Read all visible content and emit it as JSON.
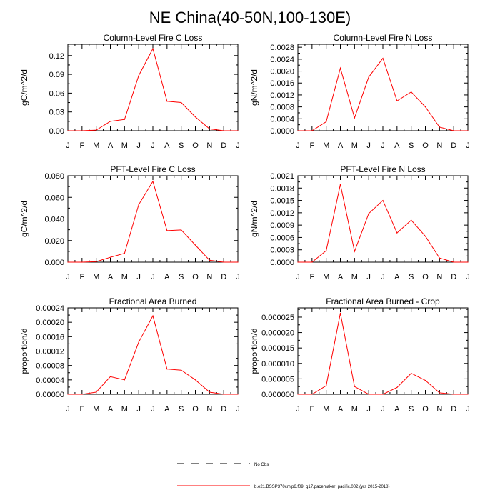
{
  "figure": {
    "title": "NE China(40-50N,100-130E)",
    "legend": {
      "placement": "bottom-center",
      "items": [
        {
          "label": "No Obs",
          "style": "dashed",
          "color": "#000000"
        },
        {
          "label": "b.e21.BSSP370cmip6.f09_g17.pacemaker_pacific.002 (yrs 2015-2018)",
          "style": "solid",
          "color": "#ff0000"
        }
      ]
    }
  },
  "chart_data": [
    {
      "type": "line",
      "title": "Column-Level Fire C Loss",
      "ylabel": "gC/m^2/d",
      "x": [
        "J",
        "F",
        "M",
        "A",
        "M",
        "J",
        "J",
        "A",
        "S",
        "O",
        "N",
        "D",
        "J"
      ],
      "yticks": [
        "0.00",
        "0.03",
        "0.06",
        "0.09",
        "0.12"
      ],
      "ylim": [
        0,
        0.138
      ],
      "series": [
        {
          "color": "#ff0000",
          "values": [
            0.0,
            0.0,
            0.001,
            0.015,
            0.018,
            0.088,
            0.131,
            0.047,
            0.045,
            0.022,
            0.003,
            0.0,
            0.0
          ]
        }
      ]
    },
    {
      "type": "line",
      "title": "Column-Level Fire N Loss",
      "ylabel": "gN/m^2/d",
      "x": [
        "J",
        "F",
        "M",
        "A",
        "M",
        "J",
        "J",
        "A",
        "S",
        "O",
        "N",
        "D",
        "J"
      ],
      "yticks": [
        "0.0000",
        "0.0004",
        "0.0008",
        "0.0012",
        "0.0016",
        "0.0020",
        "0.0024",
        "0.0028"
      ],
      "ylim": [
        0,
        0.0029
      ],
      "series": [
        {
          "color": "#ff0000",
          "values": [
            0.0,
            0.0,
            0.0003,
            0.0021,
            0.00043,
            0.0018,
            0.00243,
            0.001,
            0.0013,
            0.0008,
            0.00012,
            0.0,
            0.0
          ]
        }
      ]
    },
    {
      "type": "line",
      "title": "PFT-Level Fire C Loss",
      "ylabel": "gC/m^2/d",
      "x": [
        "J",
        "F",
        "M",
        "A",
        "M",
        "J",
        "J",
        "A",
        "S",
        "O",
        "N",
        "D",
        "J"
      ],
      "yticks": [
        "0.000",
        "0.020",
        "0.040",
        "0.060",
        "0.080"
      ],
      "ylim": [
        0,
        0.08
      ],
      "series": [
        {
          "color": "#ff0000",
          "values": [
            0.0,
            0.0,
            0.0005,
            0.0045,
            0.0082,
            0.0532,
            0.0748,
            0.0292,
            0.0298,
            0.0158,
            0.0018,
            0.0,
            0.0
          ]
        }
      ]
    },
    {
      "type": "line",
      "title": "PFT-Level Fire N Loss",
      "ylabel": "gN/m^2/d",
      "x": [
        "J",
        "F",
        "M",
        "A",
        "M",
        "J",
        "J",
        "A",
        "S",
        "O",
        "N",
        "D",
        "J"
      ],
      "yticks": [
        "0.0000",
        "0.0003",
        "0.0006",
        "0.0009",
        "0.0012",
        "0.0015",
        "0.0018",
        "0.0021"
      ],
      "ylim": [
        0,
        0.0021
      ],
      "series": [
        {
          "color": "#ff0000",
          "values": [
            0.0,
            0.0,
            0.00028,
            0.00189,
            0.00026,
            0.00118,
            0.0015,
            0.00071,
            0.00102,
            0.00063,
            0.0001,
            0.0,
            0.0
          ]
        }
      ]
    },
    {
      "type": "line",
      "title": "Fractional Area Burned",
      "ylabel": "proportion/d",
      "x": [
        "J",
        "F",
        "M",
        "A",
        "M",
        "J",
        "J",
        "A",
        "S",
        "O",
        "N",
        "D",
        "J"
      ],
      "yticks": [
        "0.00000",
        "0.00004",
        "0.00008",
        "0.00012",
        "0.00016",
        "0.00020",
        "0.00024"
      ],
      "ylim": [
        0,
        0.00024
      ],
      "series": [
        {
          "color": "#ff0000",
          "values": [
            0.0,
            0.0,
            6e-06,
            4.9e-05,
            4e-05,
            0.000145,
            0.000218,
            7e-05,
            6.7e-05,
            4e-05,
            6e-06,
            0.0,
            0.0
          ]
        }
      ]
    },
    {
      "type": "line",
      "title": "Fractional Area Burned - Crop",
      "ylabel": "proportion/d",
      "x": [
        "J",
        "F",
        "M",
        "A",
        "M",
        "J",
        "J",
        "A",
        "S",
        "O",
        "N",
        "D",
        "J"
      ],
      "yticks": [
        "0.000000",
        "0.000005",
        "0.000010",
        "0.000015",
        "0.000020",
        "0.000025"
      ],
      "ylim": [
        0,
        2.8e-05
      ],
      "series": [
        {
          "color": "#ff0000",
          "values": [
            0.0,
            0.0,
            2.8e-06,
            2.63e-05,
            2.5e-06,
            0.0,
            0.0,
            2.2e-06,
            6.8e-06,
            4.5e-06,
            5e-07,
            0.0,
            0.0
          ]
        }
      ]
    }
  ]
}
